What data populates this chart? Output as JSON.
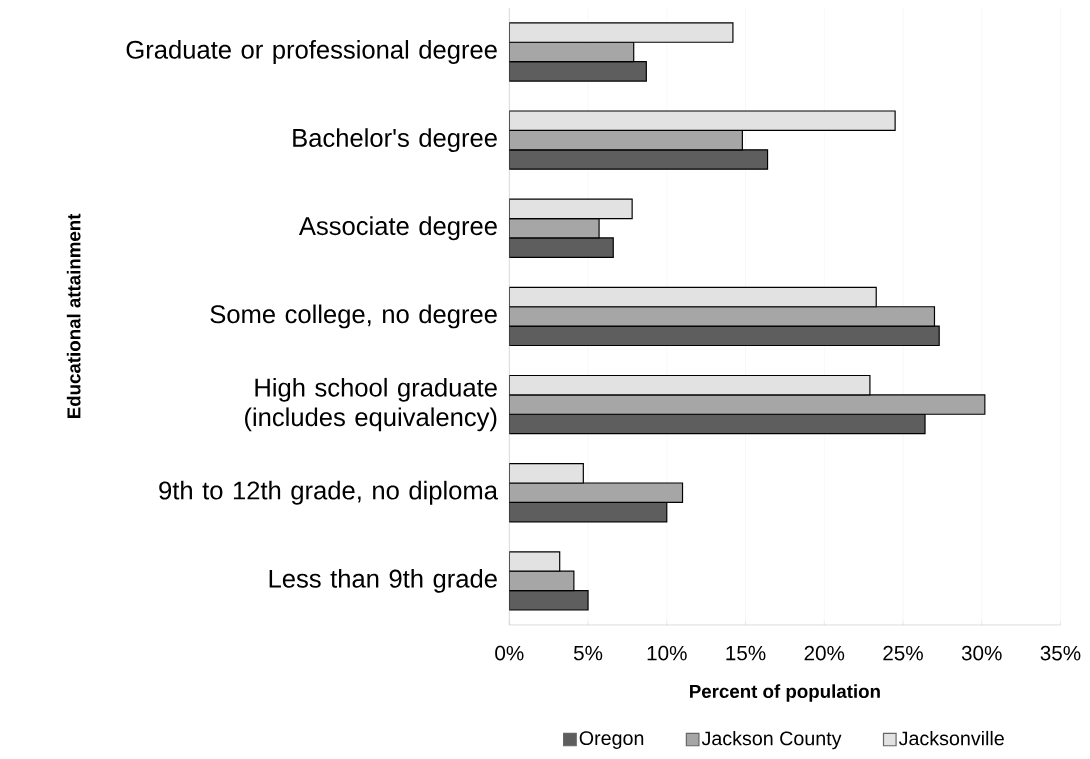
{
  "chart_data": {
    "type": "bar",
    "orientation": "horizontal",
    "xlabel": "Percent of population",
    "ylabel": "Educational attainment",
    "categories": [
      "Graduate or professional degree",
      "Bachelor's degree",
      "Associate degree",
      "Some college, no degree",
      "High school graduate (includes equivalency)",
      "9th to 12th grade, no diploma",
      "Less than 9th grade"
    ],
    "series": [
      {
        "name": "Oregon",
        "color": "#5e5e5e",
        "values": [
          8.7,
          16.4,
          6.6,
          27.3,
          26.4,
          10.0,
          5.0
        ]
      },
      {
        "name": "Jackson County",
        "color": "#a6a6a6",
        "values": [
          7.9,
          14.8,
          5.7,
          27.0,
          30.2,
          11.0,
          4.1
        ]
      },
      {
        "name": "Jacksonville",
        "color": "#e2e2e2",
        "values": [
          14.2,
          24.5,
          7.8,
          23.3,
          22.9,
          4.7,
          3.2
        ]
      }
    ],
    "xlim": [
      0,
      35
    ],
    "xticks": [
      {
        "value": 0,
        "label": "0%"
      },
      {
        "value": 5,
        "label": "5%"
      },
      {
        "value": 10,
        "label": "10%"
      },
      {
        "value": 15,
        "label": "15%"
      },
      {
        "value": 20,
        "label": "20%"
      },
      {
        "value": 25,
        "label": "25%"
      },
      {
        "value": 30,
        "label": "30%"
      },
      {
        "value": 35,
        "label": "35%"
      }
    ],
    "grid": "x",
    "legend": "bottom"
  }
}
